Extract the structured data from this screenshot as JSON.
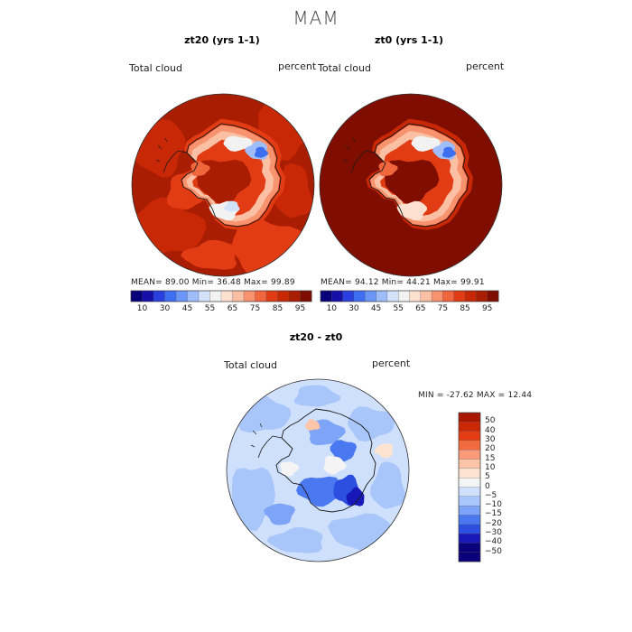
{
  "page": {
    "title": "MAM"
  },
  "colors": {
    "scale": [
      "#08007a",
      "#1510a8",
      "#2a3fe0",
      "#3d6ff0",
      "#6b96f5",
      "#9fbdfa",
      "#d2e2fb",
      "#f2f2f2",
      "#fde0cf",
      "#fbbfa3",
      "#f7946f",
      "#f0663d",
      "#e23c14",
      "#c92806",
      "#a91d02",
      "#7f0e00"
    ],
    "diff_scale": [
      "#0a007a",
      "#1818b8",
      "#2c4fe0",
      "#4a78f0",
      "#7da4f6",
      "#a8c6fa",
      "#cfe0fc",
      "#f4f4f4",
      "#fde3d2",
      "#fcc4a8",
      "#f99b78",
      "#f26a40",
      "#e43c15",
      "#cc2806",
      "#a81700"
    ],
    "map_outline": "#1a1a1a"
  },
  "chart_data": [
    {
      "type": "heatmap",
      "title": "zt20 (yrs 1-1)",
      "left_label": "Total cloud",
      "right_label": "percent",
      "stats_text": "MEAN=  89.00   Min=  36.48   Max=  99.89",
      "stats": {
        "mean": 89.0,
        "min": 36.48,
        "max": 99.89
      },
      "colorbar_ticks": [
        "10",
        "30",
        "45",
        "55",
        "65",
        "75",
        "85",
        "95"
      ],
      "colorbar_levels": [
        10,
        20,
        30,
        40,
        45,
        50,
        55,
        60,
        65,
        70,
        75,
        80,
        85,
        90,
        95
      ]
    },
    {
      "type": "heatmap",
      "title": "zt0 (yrs 1-1)",
      "left_label": "Total cloud",
      "right_label": "percent",
      "stats_text": "MEAN=  94.12   Min=  44.21   Max=  99.91",
      "stats": {
        "mean": 94.12,
        "min": 44.21,
        "max": 99.91
      },
      "colorbar_ticks": [
        "10",
        "30",
        "45",
        "55",
        "65",
        "75",
        "85",
        "95"
      ],
      "colorbar_levels": [
        10,
        20,
        30,
        40,
        45,
        50,
        55,
        60,
        65,
        70,
        75,
        80,
        85,
        90,
        95
      ]
    },
    {
      "type": "heatmap",
      "title": "zt20 - zt0",
      "left_label": "Total cloud",
      "right_label": "percent",
      "stats_text": "MIN = -27.62 MAX =  12.44",
      "stats": {
        "min": -27.62,
        "max": 12.44
      },
      "colorbar_ticks": [
        "50",
        "40",
        "30",
        "20",
        "15",
        "10",
        "5",
        "0",
        "−5",
        "−10",
        "−15",
        "−20",
        "−30",
        "−40",
        "−50"
      ],
      "colorbar_levels": [
        -50,
        -40,
        -30,
        -20,
        -15,
        -10,
        -5,
        0,
        5,
        10,
        15,
        20,
        30,
        40,
        50
      ]
    }
  ]
}
